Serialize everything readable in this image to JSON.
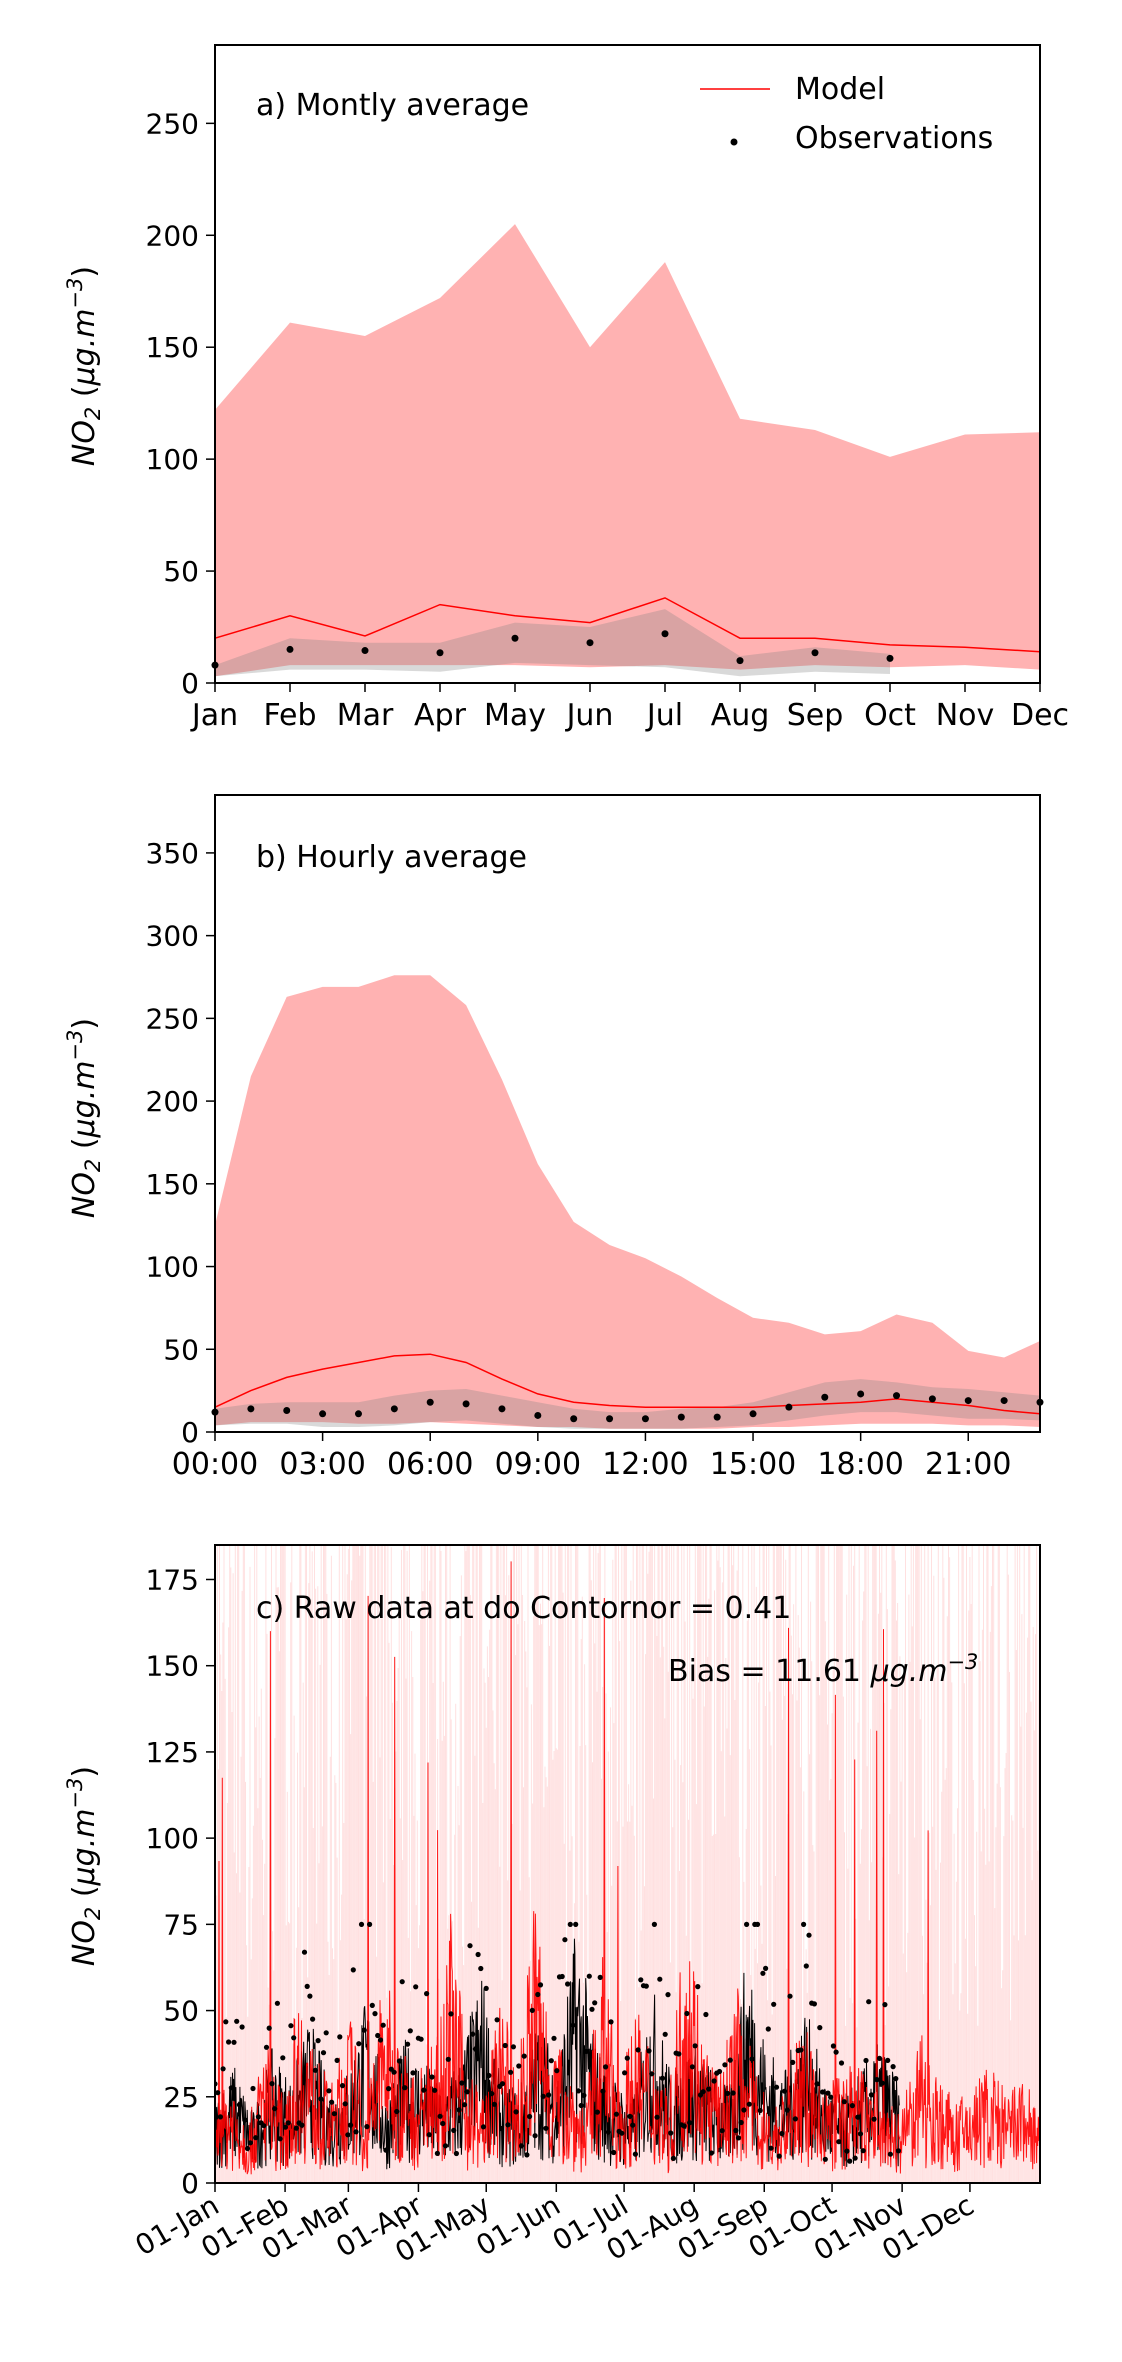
{
  "chart_data": [
    {
      "type": "area",
      "title": "a) Montly average",
      "xlabel": "",
      "ylabel": "NO2 (µg.m-3)",
      "ylabel_parts": {
        "base": "NO",
        "sub": "2",
        "open": " (",
        "mu": "μg.m",
        "sup": "−3",
        "close": ")"
      },
      "categories": [
        "Jan",
        "Feb",
        "Mar",
        "Apr",
        "May",
        "Jun",
        "Jul",
        "Aug",
        "Sep",
        "Oct",
        "Nov",
        "Dec"
      ],
      "ylim": [
        0,
        285
      ],
      "yticks": [
        0,
        50,
        100,
        150,
        200,
        250
      ],
      "legend": {
        "position": "top-right",
        "entries": [
          "Model",
          "Observations"
        ]
      },
      "series": [
        {
          "name": "Model",
          "values": [
            20,
            30,
            21,
            35,
            30,
            27,
            38,
            20,
            20,
            17,
            16,
            14
          ]
        },
        {
          "name": "Observations",
          "values": [
            8,
            15,
            14.5,
            13.5,
            20,
            18,
            22,
            10,
            13.5,
            11,
            null,
            null
          ]
        }
      ],
      "model_band": {
        "upper": [
          122,
          161,
          155,
          172,
          205,
          150,
          188,
          118,
          113,
          101,
          111,
          112
        ],
        "lower": [
          3,
          8,
          8,
          8,
          8,
          7,
          8,
          6,
          8,
          7,
          8,
          6
        ]
      },
      "obs_band": {
        "upper": [
          8,
          20,
          18,
          18,
          27,
          25,
          33,
          12,
          16,
          13,
          null,
          null
        ],
        "lower": [
          3,
          6,
          6,
          5,
          9,
          8,
          7,
          3,
          5,
          4,
          null,
          null
        ]
      }
    },
    {
      "type": "area",
      "title": "b) Hourly average",
      "xlabel": "",
      "ylabel": "NO2 (µg.m-3)",
      "ylabel_parts": {
        "base": "NO",
        "sub": "2",
        "open": " (",
        "mu": "μg.m",
        "sup": "−3",
        "close": ")"
      },
      "x": [
        0,
        1,
        2,
        3,
        4,
        5,
        6,
        7,
        8,
        9,
        10,
        11,
        12,
        13,
        14,
        15,
        16,
        17,
        18,
        19,
        20,
        21,
        22,
        23
      ],
      "xticks": [
        {
          "value": 0,
          "label": "00:00"
        },
        {
          "value": 3,
          "label": "03:00"
        },
        {
          "value": 6,
          "label": "06:00"
        },
        {
          "value": 9,
          "label": "09:00"
        },
        {
          "value": 12,
          "label": "12:00"
        },
        {
          "value": 15,
          "label": "15:00"
        },
        {
          "value": 18,
          "label": "18:00"
        },
        {
          "value": 21,
          "label": "21:00"
        }
      ],
      "xlim": [
        0,
        23
      ],
      "ylim": [
        0,
        385
      ],
      "yticks": [
        0,
        50,
        100,
        150,
        200,
        250,
        300,
        350
      ],
      "series": [
        {
          "name": "Model",
          "values": [
            15,
            25,
            33,
            38,
            42,
            46,
            47,
            42,
            32,
            23,
            18,
            16,
            15,
            15,
            15,
            15,
            16,
            17,
            18,
            20,
            18,
            16,
            13,
            11
          ]
        },
        {
          "name": "Observations",
          "values": [
            12,
            14,
            13,
            11,
            11,
            14,
            18,
            17,
            14,
            10,
            8,
            8,
            8,
            9,
            9,
            11,
            15,
            21,
            23,
            22,
            20,
            19,
            19,
            18
          ]
        }
      ],
      "model_band": {
        "upper": [
          125,
          215,
          263,
          269,
          269,
          276,
          276,
          258,
          213,
          162,
          127,
          113,
          105,
          94,
          81,
          69,
          66,
          59,
          61,
          71,
          66,
          49,
          45,
          55
        ],
        "lower": [
          4,
          6,
          6,
          6,
          5,
          5,
          6,
          5,
          4,
          3,
          3,
          2,
          2,
          2,
          2,
          3,
          3,
          4,
          5,
          5,
          5,
          4,
          4,
          3
        ]
      },
      "obs_band": {
        "upper": [
          14,
          17,
          18,
          18,
          18,
          22,
          25,
          26,
          22,
          18,
          14,
          12,
          12,
          14,
          15,
          18,
          24,
          30,
          32,
          30,
          27,
          26,
          24,
          22
        ],
        "lower": [
          4,
          5,
          5,
          3,
          3,
          4,
          6,
          7,
          5,
          3,
          2,
          2,
          2,
          2,
          3,
          4,
          7,
          10,
          12,
          12,
          10,
          8,
          8,
          7
        ]
      }
    },
    {
      "type": "line",
      "title": "c) Raw data at  do Contorno",
      "annotations": [
        "r = 0.41",
        "Bias = 11.61 μg.m−3"
      ],
      "annotation_r": "r = 0.41",
      "bias_parts": {
        "prefix": "Bias = 11.61 ",
        "mu": "μg.m",
        "sup": "−3"
      },
      "xlabel": "",
      "ylabel": "NO2 (µg.m-3)",
      "ylabel_parts": {
        "base": "NO",
        "sub": "2",
        "open": " (",
        "mu": "μg.m",
        "sup": "−3",
        "close": ")"
      },
      "xticks": [
        {
          "day": 0,
          "label": "01-Jan"
        },
        {
          "day": 31,
          "label": "01-Feb"
        },
        {
          "day": 59,
          "label": "01-Mar"
        },
        {
          "day": 90,
          "label": "01-Apr"
        },
        {
          "day": 120,
          "label": "01-May"
        },
        {
          "day": 151,
          "label": "01-Jun"
        },
        {
          "day": 181,
          "label": "01-Jul"
        },
        {
          "day": 212,
          "label": "01-Aug"
        },
        {
          "day": 243,
          "label": "01-Sep"
        },
        {
          "day": 273,
          "label": "01-Oct"
        },
        {
          "day": 304,
          "label": "01-Nov"
        },
        {
          "day": 334,
          "label": "01-Dec"
        }
      ],
      "xlim": [
        0,
        365
      ],
      "ylim": [
        0,
        185
      ],
      "yticks": [
        0,
        25,
        50,
        75,
        100,
        125,
        150,
        175
      ],
      "model_period": [
        0,
        365
      ],
      "obs_period": [
        0,
        303
      ],
      "series": [
        {
          "name": "Model",
          "values": [
            15,
            22,
            12,
            30,
            18,
            40,
            25,
            20,
            35,
            15,
            45,
            28,
            22,
            30,
            55,
            24,
            18,
            38,
            22,
            60,
            30,
            25,
            15,
            48,
            20,
            35,
            28,
            18,
            62,
            30,
            22,
            40,
            25,
            15,
            20,
            35,
            18,
            22,
            25,
            20,
            15,
            18,
            30,
            22,
            16,
            20,
            25,
            18,
            22,
            15
          ]
        },
        {
          "name": "Observations",
          "values": [
            18,
            25,
            15,
            28,
            22,
            35,
            20,
            24,
            40,
            18,
            30,
            26,
            20,
            28,
            45,
            22,
            20,
            35,
            25,
            55,
            30,
            22,
            18,
            42,
            22,
            30,
            25,
            20,
            50,
            28,
            24,
            38,
            22,
            18,
            24,
            30,
            20
          ]
        }
      ]
    }
  ]
}
